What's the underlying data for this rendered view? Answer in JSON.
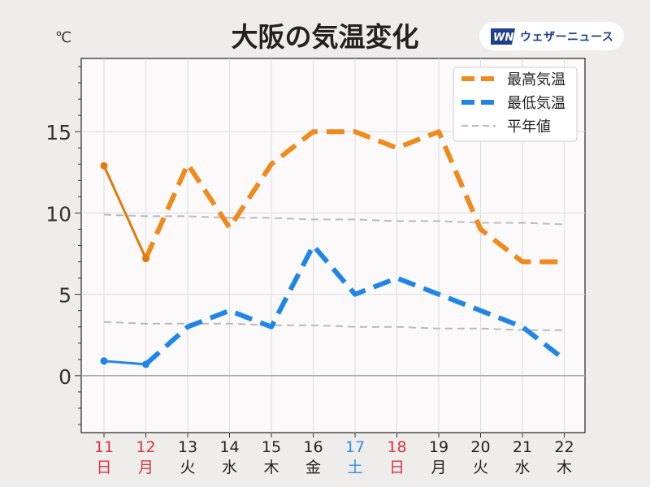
{
  "chart_data": {
    "type": "line",
    "title": "大阪の気温変化",
    "ylabel": "℃",
    "ylim": [
      -3.5,
      19.5
    ],
    "yticks": [
      0,
      5,
      10,
      15
    ],
    "grid": true,
    "legend_placement": "top-right",
    "x_dates": [
      "11",
      "12",
      "13",
      "14",
      "15",
      "16",
      "17",
      "18",
      "19",
      "20",
      "21",
      "22"
    ],
    "x_weekdays": [
      "日",
      "月",
      "火",
      "水",
      "木",
      "金",
      "土",
      "日",
      "月",
      "火",
      "水",
      "木"
    ],
    "x_label_colors": [
      "#d63340",
      "#d63340",
      "#222222",
      "#222222",
      "#222222",
      "#222222",
      "#2f8fe0",
      "#d63340",
      "#222222",
      "#222222",
      "#222222",
      "#222222"
    ],
    "series": [
      {
        "name": "最高気温",
        "color": "#f08a1c",
        "observed_color": "#e07a0c",
        "values": [
          12.9,
          7.2,
          13,
          9.1,
          13,
          15,
          15,
          14,
          15,
          9,
          7,
          7
        ],
        "observed_count": 2
      },
      {
        "name": "最低気温",
        "color": "#1f86e8",
        "observed_color": "#1f86e8",
        "values": [
          0.9,
          0.7,
          3,
          4,
          3,
          8,
          5,
          6,
          5,
          4,
          3,
          1
        ],
        "observed_count": 2
      },
      {
        "name": "平年値",
        "color": "#bbbbbb",
        "values": [
          9.9,
          9.8,
          9.8,
          9.7,
          9.7,
          9.6,
          9.6,
          9.5,
          9.5,
          9.4,
          9.4,
          9.3
        ]
      },
      {
        "color": "#bbbbbb",
        "values": [
          3.3,
          3.2,
          3.2,
          3.2,
          3.1,
          3.1,
          3.0,
          3.0,
          2.9,
          2.9,
          2.8,
          2.8
        ]
      }
    ]
  },
  "brand": {
    "text": "ウェザーニュース",
    "color": "#1f3f8c",
    "icon": "wn-logo-icon"
  }
}
